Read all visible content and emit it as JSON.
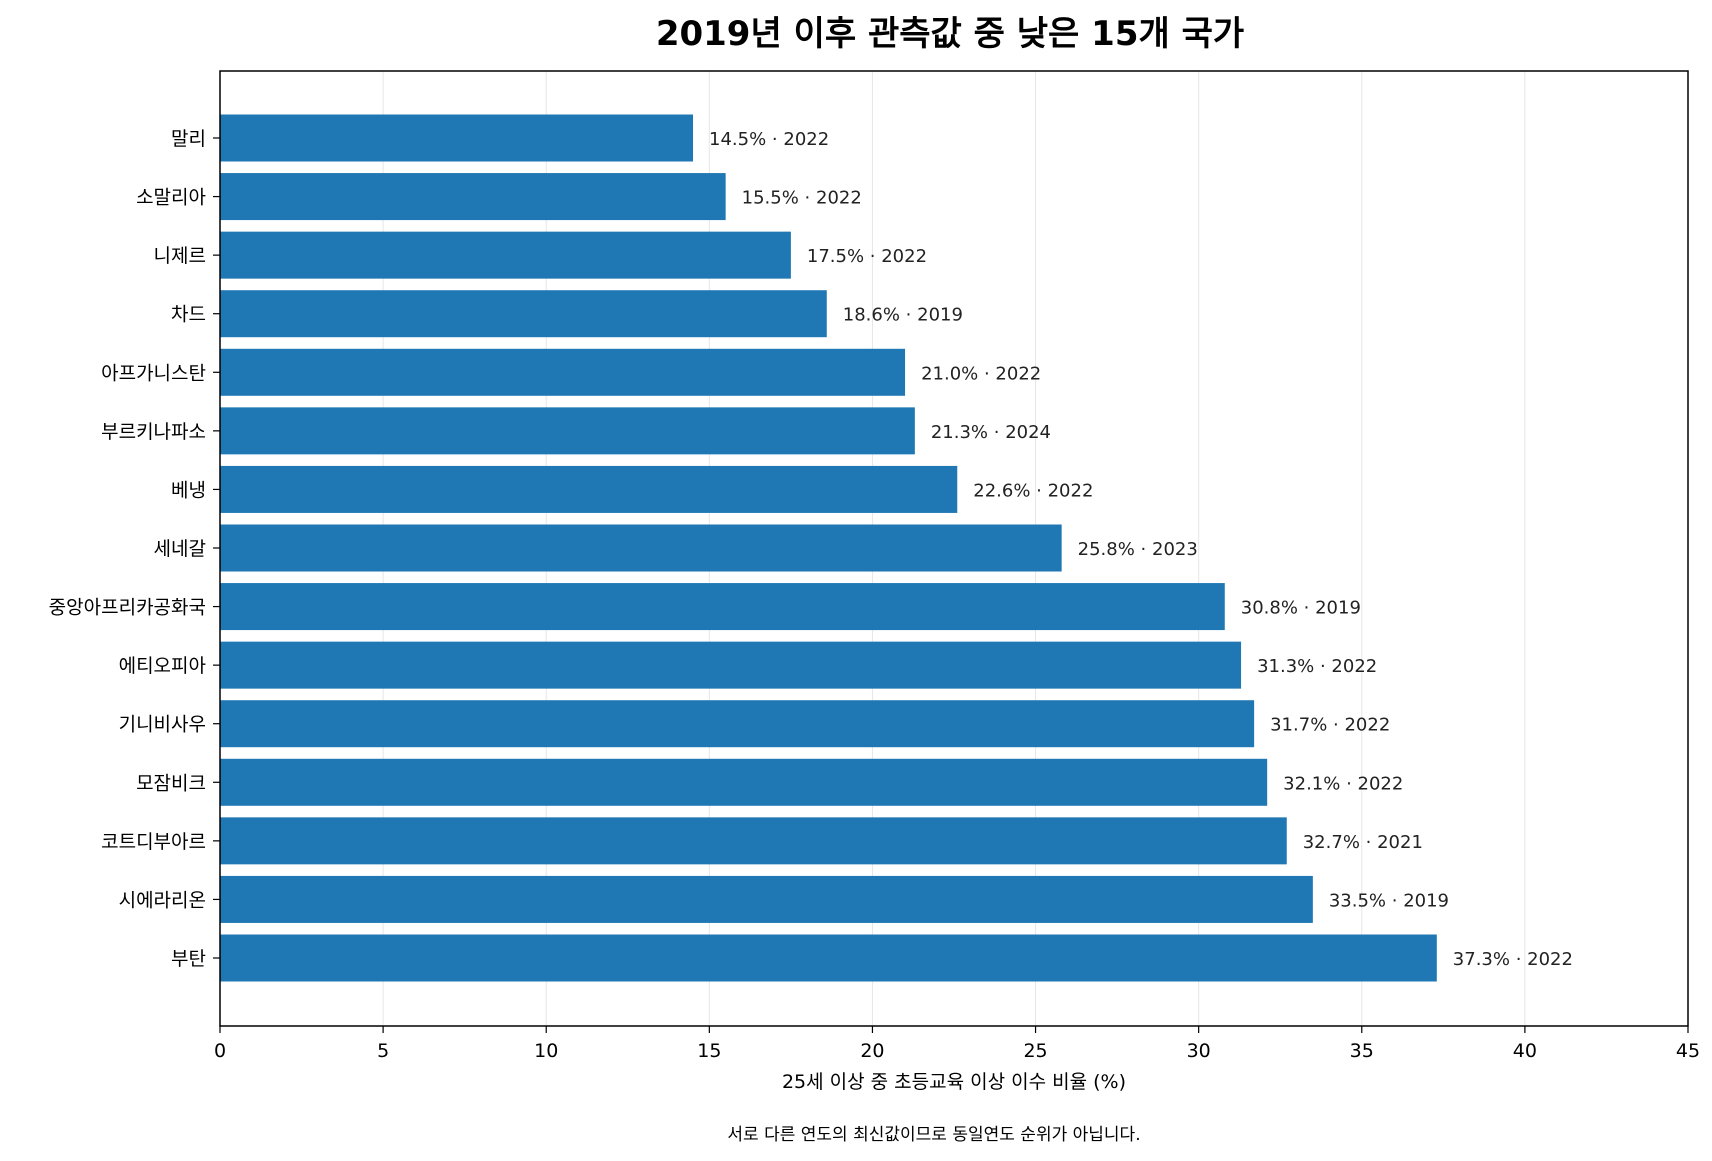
{
  "chart_data": {
    "type": "bar",
    "orientation": "horizontal",
    "title": "2019년 이후 관측값 중 낮은 15개 국가",
    "xlabel": "25세 이상 중 초등교육 이상 이수 비율 (%)",
    "ylabel": "",
    "footnote": "서로 다른 연도의 최신값이므로 동일연도 순위가 아닙니다.",
    "xlim": [
      0,
      45
    ],
    "xticks": [
      0,
      5,
      10,
      15,
      20,
      25,
      30,
      35,
      40,
      45
    ],
    "grid": "vertical",
    "bar_color": "#1f77b4",
    "categories": [
      "말리",
      "소말리아",
      "니제르",
      "차드",
      "아프가니스탄",
      "부르키나파소",
      "베냉",
      "세네갈",
      "중앙아프리카공화국",
      "에티오피아",
      "기니비사우",
      "모잠비크",
      "코트디부아르",
      "시에라리온",
      "부탄"
    ],
    "values": [
      14.5,
      15.5,
      17.5,
      18.6,
      21.0,
      21.3,
      22.6,
      25.8,
      30.8,
      31.3,
      31.7,
      32.1,
      32.7,
      33.5,
      37.3
    ],
    "years": [
      "2022",
      "2022",
      "2022",
      "2019",
      "2022",
      "2024",
      "2022",
      "2023",
      "2019",
      "2022",
      "2022",
      "2022",
      "2021",
      "2019",
      "2022"
    ],
    "data_labels": [
      "14.5% · 2022",
      "15.5% · 2022",
      "17.5% · 2022",
      "18.6% · 2019",
      "21.0% · 2022",
      "21.3% · 2024",
      "22.6% · 2022",
      "25.8% · 2023",
      "30.8% · 2019",
      "31.3% · 2022",
      "31.7% · 2022",
      "32.1% · 2022",
      "32.7% · 2021",
      "33.5% · 2019",
      "37.3% · 2022"
    ]
  }
}
